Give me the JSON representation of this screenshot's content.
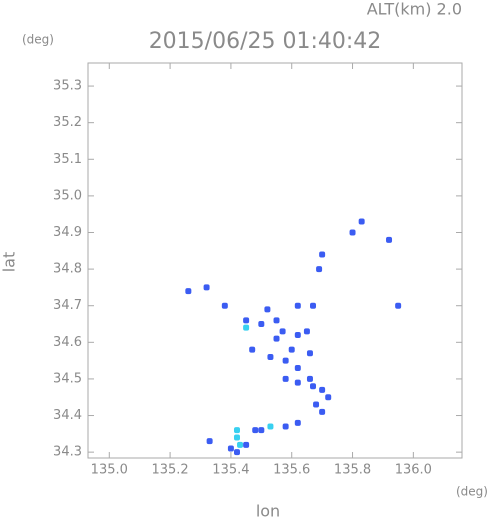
{
  "chart_data": {
    "type": "scatter",
    "title": "2015/06/25 01:40:42",
    "subtitle": "ALT(km) 2.0",
    "y_unit": "(deg)",
    "x_unit": "(deg)",
    "x_label": "lon",
    "y_label": "lat",
    "xlim": [
      134.93,
      136.16
    ],
    "ylim": [
      34.284,
      35.363
    ],
    "xticks": [
      {
        "value": 135,
        "label": "135.0"
      },
      135.2,
      135.4,
      135.6,
      135.8,
      {
        "value": 136,
        "label": "136.0"
      }
    ],
    "yticks": [
      34.3,
      34.4,
      34.5,
      34.6,
      34.7,
      34.8,
      34.9,
      {
        "value": 35,
        "label": "35.0"
      },
      35.1,
      35.2,
      35.3
    ],
    "series": [
      {
        "color": "#3b5cf2",
        "x": [
          135.26,
          135.32,
          135.38,
          135.52,
          135.62,
          135.67,
          135.45,
          135.5,
          135.55,
          135.57,
          135.62,
          135.65,
          135.55,
          135.6,
          135.66,
          135.58,
          135.62,
          135.58,
          135.62,
          135.66,
          135.67,
          135.7,
          135.72,
          135.68,
          135.7,
          135.62,
          135.58,
          135.5,
          135.33,
          135.42,
          135.45,
          135.4,
          135.48,
          135.8,
          135.83,
          135.92,
          135.95,
          135.47,
          135.53,
          135.69,
          135.7
        ],
        "y": [
          34.74,
          34.75,
          34.7,
          34.69,
          34.7,
          34.7,
          34.66,
          34.65,
          34.66,
          34.63,
          34.62,
          34.63,
          34.61,
          34.58,
          34.57,
          34.55,
          34.53,
          34.5,
          34.49,
          34.5,
          34.48,
          34.47,
          34.45,
          34.43,
          34.41,
          34.38,
          34.37,
          34.36,
          34.33,
          34.3,
          34.32,
          34.31,
          34.36,
          34.9,
          34.93,
          34.88,
          34.7,
          34.58,
          34.56,
          34.8,
          34.84
        ]
      },
      {
        "color": "#38d0f0",
        "x": [
          135.42,
          135.43,
          135.53,
          135.42,
          135.45
        ],
        "y": [
          34.34,
          34.32,
          34.37,
          34.36,
          34.64
        ]
      }
    ]
  }
}
